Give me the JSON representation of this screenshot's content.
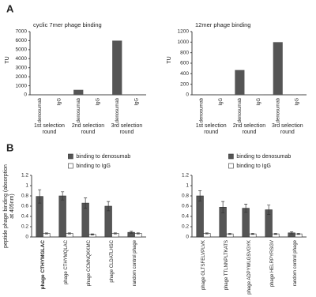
{
  "chart_data": [
    {
      "type": "bar",
      "panel_label": "A",
      "title": "cyclic 7mer phage binding",
      "y_label": "TU",
      "categories": [
        "denosumab",
        "IgG",
        "denosumab",
        "IgG",
        "denosumab",
        "IgG"
      ],
      "group_labels": [
        "1st selection round",
        "2nd selection round",
        "3rd selection round"
      ],
      "values": [
        10,
        0,
        550,
        5,
        6000,
        5
      ],
      "color": "#555555",
      "ylim": [
        0,
        7000
      ],
      "yticks": [
        0,
        1000,
        2000,
        3000,
        4000,
        5000,
        6000,
        7000
      ]
    },
    {
      "type": "bar",
      "title": "12mer phage binding",
      "y_label": "TU",
      "categories": [
        "denosumab",
        "IgG",
        "denosumab",
        "IgG",
        "denosumab",
        "IgG"
      ],
      "group_labels": [
        "1st selection round",
        "2nd selection round",
        "3rd selection round"
      ],
      "values": [
        5,
        2,
        470,
        5,
        1000,
        5
      ],
      "color": "#555555",
      "ylim": [
        0,
        1200
      ],
      "yticks": [
        0,
        200,
        400,
        600,
        800,
        1000,
        1200
      ]
    },
    {
      "type": "bar",
      "panel_label": "B",
      "y_label": "peptide phage binding (absorption at 405nm)",
      "categories": [
        "phage CTHYMGLAC",
        "phage CTHYMQLAC",
        "phage CCMNQKKMC",
        "phage CLDATLHSC",
        "random control phage"
      ],
      "bold_categories": [
        0
      ],
      "legend": "top",
      "series": [
        {
          "name": "binding to denosumab",
          "color": "#555555",
          "values": [
            0.79,
            0.8,
            0.66,
            0.6,
            0.09
          ],
          "errors": [
            0.13,
            0.08,
            0.1,
            0.09,
            0.02
          ]
        },
        {
          "name": "binding to IgG",
          "color": "#ffffff",
          "values": [
            0.07,
            0.07,
            0.05,
            0.07,
            0.07
          ],
          "errors": [
            0.01,
            0.01,
            0.01,
            0.01,
            0.01
          ]
        }
      ],
      "ylim": [
        0,
        1.2
      ],
      "yticks": [
        0,
        0.2,
        0.4,
        0.6,
        0.8,
        1,
        1.2
      ]
    },
    {
      "type": "bar",
      "categories": [
        "phage GLTSFELVPLVK",
        "phage TTLNNPLTKATS",
        "phage ADPYWLGSVGYK",
        "phage HELRPYRSGV",
        "random control phage"
      ],
      "legend": "top",
      "series": [
        {
          "name": "binding to denosumab",
          "color": "#555555",
          "values": [
            0.8,
            0.58,
            0.56,
            0.53,
            0.08
          ],
          "errors": [
            0.1,
            0.11,
            0.08,
            0.09,
            0.02
          ]
        },
        {
          "name": "binding to IgG",
          "color": "#ffffff",
          "values": [
            0.07,
            0.06,
            0.06,
            0.06,
            0.06
          ],
          "errors": [
            0.01,
            0.01,
            0.01,
            0.01,
            0.01
          ]
        }
      ],
      "ylim": [
        0,
        1.2
      ],
      "yticks": [
        0,
        0.2,
        0.4,
        0.6,
        0.8,
        1,
        1.2
      ]
    }
  ]
}
